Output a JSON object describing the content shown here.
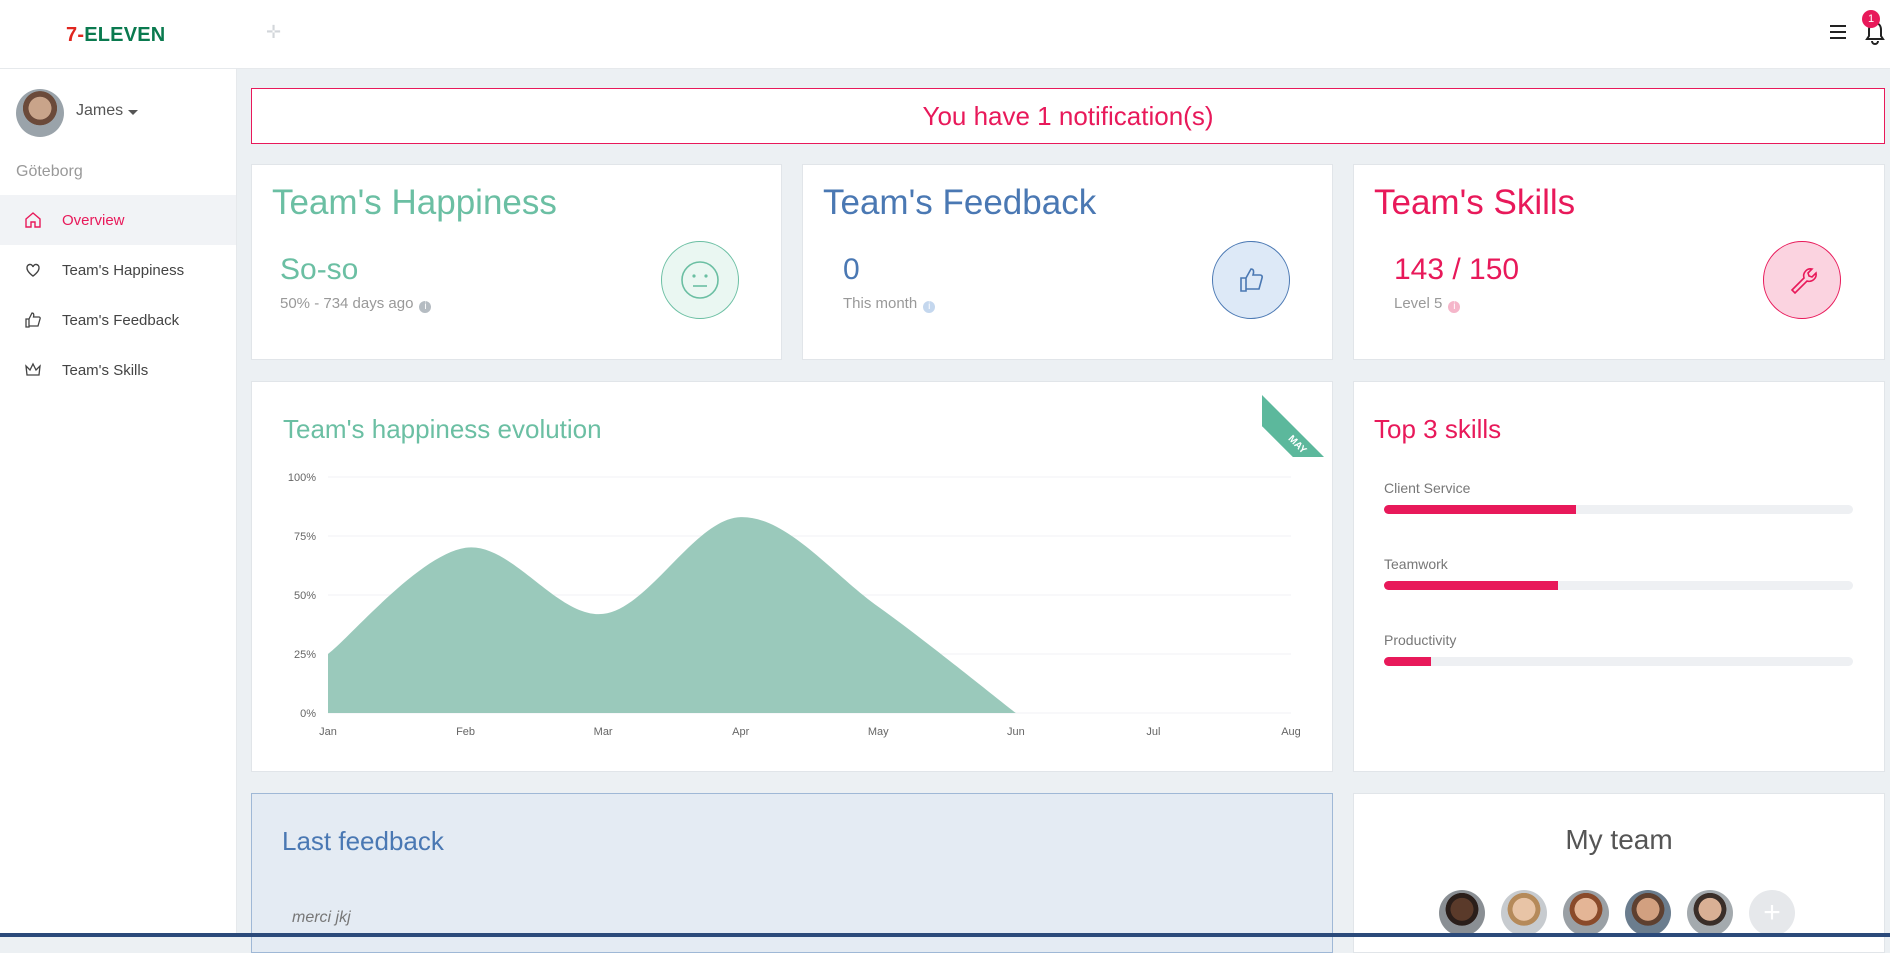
{
  "brand": {
    "logo_num": "7",
    "logo_dash": "-",
    "logo_word": "ELEVEN"
  },
  "header": {
    "notification_count": "1",
    "menu_icon": "hamburger-icon",
    "bell_icon": "bell-icon",
    "move_icon": "move-icon"
  },
  "sidebar": {
    "user_name": "James",
    "location": "Göteborg",
    "items": [
      {
        "label": "Overview",
        "icon": "home-icon",
        "active": true
      },
      {
        "label": "Team's Happiness",
        "icon": "heart-icon",
        "active": false
      },
      {
        "label": "Team's Feedback",
        "icon": "thumbs-up-icon",
        "active": false
      },
      {
        "label": "Team's Skills",
        "icon": "crown-icon",
        "active": false
      }
    ]
  },
  "notification": {
    "text": "You have 1 notification(s)"
  },
  "cards": {
    "happiness": {
      "title": "Team's Happiness",
      "value": "So-so",
      "sub": "50% - 734 days ago",
      "icon": "neutral-face-icon"
    },
    "feedback": {
      "title": "Team's Feedback",
      "value": "0",
      "sub": "This month",
      "icon": "thumbs-up-icon"
    },
    "skills": {
      "title": "Team's Skills",
      "value": "143 / 150",
      "sub": "Level 5",
      "icon": "wrench-icon"
    }
  },
  "evolution": {
    "title": "Team's happiness evolution",
    "ribbon": "MAY"
  },
  "chart_data": {
    "type": "area",
    "title": "Team's happiness evolution",
    "x": [
      "Jan",
      "Feb",
      "Mar",
      "Apr",
      "May",
      "Jun",
      "Jul",
      "Aug"
    ],
    "series": [
      {
        "values": [
          25,
          70,
          42,
          83,
          45,
          0,
          null,
          null
        ]
      }
    ],
    "y_ticks": [
      "0%",
      "25%",
      "50%",
      "75%",
      "100%"
    ],
    "ylim": [
      0,
      100
    ],
    "grid": true,
    "color": "#9ac9bb"
  },
  "top_skills": {
    "title": "Top 3 skills",
    "items": [
      {
        "label": "Client Service",
        "pct": 41
      },
      {
        "label": "Teamwork",
        "pct": 37
      },
      {
        "label": "Productivity",
        "pct": 10
      }
    ]
  },
  "last_feedback": {
    "title": "Last feedback",
    "text": "merci jkj"
  },
  "my_team": {
    "title": "My team",
    "add_icon": "plus-icon"
  },
  "colors": {
    "accent": "#e8195a",
    "green": "#6bbfa3",
    "blue": "#4a78b3",
    "chart_fill": "#9ac9bb"
  }
}
